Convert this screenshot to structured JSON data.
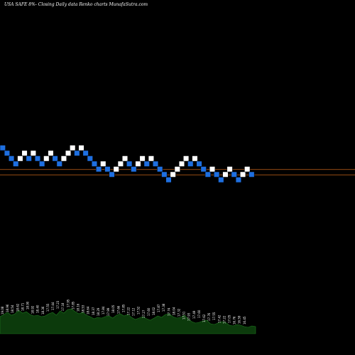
{
  "header": {
    "title": "USA SAFE 8%-  Closing Daily data  Renko  charts MunafaSutra.com"
  },
  "colors": {
    "background": "#000000",
    "up_brick": "#ffffff",
    "down_brick": "#1e6fe0",
    "reference_line": "#c8651b",
    "volume_fill": "#0c3a0c",
    "volume_edge": "#1f7a1f"
  },
  "chart_data": [
    {
      "type": "renko",
      "title": "USA SAFE 8%-  Closing Daily data  Renko  charts MunafaSutra.com",
      "bricks": [
        {
          "col": 0,
          "level": 4,
          "dir": "down"
        },
        {
          "col": 1,
          "level": 3,
          "dir": "down"
        },
        {
          "col": 2,
          "level": 2,
          "dir": "down"
        },
        {
          "col": 3,
          "level": 1,
          "dir": "down"
        },
        {
          "col": 4,
          "level": 2,
          "dir": "up"
        },
        {
          "col": 5,
          "level": 3,
          "dir": "up"
        },
        {
          "col": 6,
          "level": 2,
          "dir": "down"
        },
        {
          "col": 7,
          "level": 3,
          "dir": "up"
        },
        {
          "col": 8,
          "level": 2,
          "dir": "down"
        },
        {
          "col": 9,
          "level": 1,
          "dir": "down"
        },
        {
          "col": 10,
          "level": 2,
          "dir": "up"
        },
        {
          "col": 11,
          "level": 3,
          "dir": "up"
        },
        {
          "col": 12,
          "level": 2,
          "dir": "down"
        },
        {
          "col": 13,
          "level": 1,
          "dir": "down"
        },
        {
          "col": 14,
          "level": 2,
          "dir": "up"
        },
        {
          "col": 15,
          "level": 3,
          "dir": "up"
        },
        {
          "col": 16,
          "level": 4,
          "dir": "up"
        },
        {
          "col": 17,
          "level": 3,
          "dir": "down"
        },
        {
          "col": 18,
          "level": 4,
          "dir": "up"
        },
        {
          "col": 19,
          "level": 3,
          "dir": "down"
        },
        {
          "col": 20,
          "level": 2,
          "dir": "down"
        },
        {
          "col": 21,
          "level": 1,
          "dir": "down"
        },
        {
          "col": 22,
          "level": 0,
          "dir": "down"
        },
        {
          "col": 23,
          "level": 1,
          "dir": "up"
        },
        {
          "col": 24,
          "level": 0,
          "dir": "down"
        },
        {
          "col": 25,
          "level": -1,
          "dir": "down"
        },
        {
          "col": 26,
          "level": 0,
          "dir": "up"
        },
        {
          "col": 27,
          "level": 1,
          "dir": "up"
        },
        {
          "col": 28,
          "level": 2,
          "dir": "up"
        },
        {
          "col": 29,
          "level": 1,
          "dir": "down"
        },
        {
          "col": 30,
          "level": 0,
          "dir": "down"
        },
        {
          "col": 31,
          "level": 1,
          "dir": "up"
        },
        {
          "col": 32,
          "level": 2,
          "dir": "up"
        },
        {
          "col": 33,
          "level": 1,
          "dir": "down"
        },
        {
          "col": 34,
          "level": 2,
          "dir": "up"
        },
        {
          "col": 35,
          "level": 1,
          "dir": "down"
        },
        {
          "col": 36,
          "level": 0,
          "dir": "down"
        },
        {
          "col": 37,
          "level": -1,
          "dir": "down"
        },
        {
          "col": 38,
          "level": -2,
          "dir": "down"
        },
        {
          "col": 39,
          "level": -1,
          "dir": "up"
        },
        {
          "col": 40,
          "level": 0,
          "dir": "up"
        },
        {
          "col": 41,
          "level": 1,
          "dir": "up"
        },
        {
          "col": 42,
          "level": 2,
          "dir": "up"
        },
        {
          "col": 43,
          "level": 1,
          "dir": "down"
        },
        {
          "col": 44,
          "level": 2,
          "dir": "up"
        },
        {
          "col": 45,
          "level": 1,
          "dir": "down"
        },
        {
          "col": 46,
          "level": 0,
          "dir": "down"
        },
        {
          "col": 47,
          "level": -1,
          "dir": "down"
        },
        {
          "col": 48,
          "level": 0,
          "dir": "up"
        },
        {
          "col": 49,
          "level": -1,
          "dir": "down"
        },
        {
          "col": 50,
          "level": -2,
          "dir": "down"
        },
        {
          "col": 51,
          "level": -1,
          "dir": "up"
        },
        {
          "col": 52,
          "level": 0,
          "dir": "up"
        },
        {
          "col": 53,
          "level": -1,
          "dir": "down"
        },
        {
          "col": 54,
          "level": -2,
          "dir": "down"
        },
        {
          "col": 55,
          "level": -1,
          "dir": "up"
        },
        {
          "col": 56,
          "level": 0,
          "dir": "up"
        },
        {
          "col": 57,
          "level": -1,
          "dir": "down"
        }
      ],
      "reference_lines": [
        {
          "level": 0
        },
        {
          "level": -1
        }
      ],
      "volume": [
        24,
        27,
        30,
        26,
        28,
        33,
        29,
        31,
        27,
        25,
        26,
        24,
        25,
        28,
        30,
        26,
        32,
        29,
        34,
        35,
        31,
        28,
        30,
        26,
        24,
        21,
        23,
        22,
        24,
        25,
        22,
        26,
        28,
        25,
        27,
        23,
        20,
        22,
        24,
        21,
        19,
        22,
        25,
        23,
        27,
        28,
        24,
        22,
        23,
        26,
        21,
        17,
        15,
        16,
        18,
        19,
        14,
        13,
        15,
        17,
        16,
        12,
        11,
        13,
        12,
        10,
        9,
        11,
        10
      ],
      "volume_labels": [
        "19.08",
        "18.96",
        "18.54",
        "18.62",
        "18.71",
        "18.90",
        "18.92",
        "18.40",
        "18.36",
        "17.55",
        "17.44",
        "17.23",
        "17.18",
        "17.95",
        "17.85",
        "18.16",
        "18.53",
        "18.64",
        "18.37",
        "18.29",
        "17.84",
        "17.99",
        "18.05",
        "17.66",
        "17.85",
        "17.22",
        "17.12",
        "17.52",
        "17.27",
        "17.60",
        "18.02",
        "17.87",
        "17.38",
        "17.74",
        "18.04",
        "17.32",
        "17.51",
        "17.93",
        "17.49",
        "17.60",
        "17.62",
        "17.76",
        "17.55",
        "17.42",
        "17.22",
        "17.05",
        "16.76",
        "16.59",
        "16.45"
      ]
    }
  ]
}
